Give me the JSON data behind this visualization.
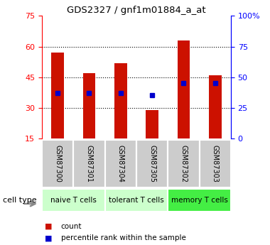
{
  "title": "GDS2327 / gnf1m01884_a_at",
  "samples": [
    "GSM87300",
    "GSM87301",
    "GSM87304",
    "GSM87305",
    "GSM87302",
    "GSM87303"
  ],
  "counts": [
    57.0,
    47.0,
    52.0,
    29.0,
    63.0,
    46.0
  ],
  "percentiles": [
    37.0,
    37.0,
    37.0,
    35.5,
    45.0,
    45.0
  ],
  "bar_bottom": 15,
  "ylim": [
    15,
    75
  ],
  "yticks_left": [
    15,
    30,
    45,
    60,
    75
  ],
  "right_yticks": [
    0,
    25,
    50,
    75,
    100
  ],
  "right_yticklabels": [
    "0",
    "25",
    "50",
    "75",
    "100%"
  ],
  "bar_color": "#CC1100",
  "dot_color": "#0000CC",
  "sample_bg": "#cccccc",
  "cell_groups": [
    {
      "label": "naive T cells",
      "start": 0,
      "end": 1,
      "color": "#ccffcc"
    },
    {
      "label": "tolerant T cells",
      "start": 2,
      "end": 3,
      "color": "#ccffcc"
    },
    {
      "label": "memory T cells",
      "start": 4,
      "end": 5,
      "color": "#44ee44"
    }
  ],
  "legend_count_label": "count",
  "legend_pct_label": "percentile rank within the sample",
  "cell_type_label": "cell type",
  "bar_width": 0.4
}
